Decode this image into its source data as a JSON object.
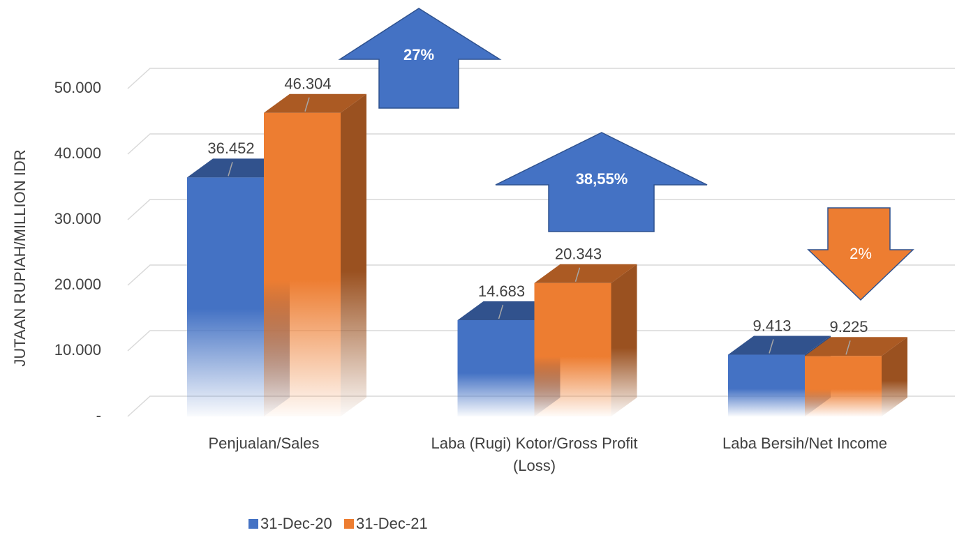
{
  "chart_data": {
    "type": "bar3d",
    "y_axis_label": "JUTAAN RUPIAH/MILLION IDR",
    "categories": [
      "Penjualan/Sales",
      "Laba (Rugi) Kotor/Gross Profit (Loss)",
      "Laba Bersih/Net Income"
    ],
    "series": [
      {
        "name": "31-Dec-20",
        "color": "#4472c4",
        "values": [
          36452,
          14683,
          9413
        ],
        "value_labels": [
          "36.452",
          "14.683",
          "9.413"
        ]
      },
      {
        "name": "31-Dec-21",
        "color": "#ed7d31",
        "values": [
          46304,
          20343,
          9225
        ],
        "value_labels": [
          "46.304",
          "20.343",
          "9.225"
        ]
      }
    ],
    "ylim": [
      0,
      50000
    ],
    "yticks": [
      {
        "value": 0,
        "label": "-"
      },
      {
        "value": 10000,
        "label": "10.000"
      },
      {
        "value": 20000,
        "label": "20.000"
      },
      {
        "value": 30000,
        "label": "30.000"
      },
      {
        "value": 40000,
        "label": "40.000"
      },
      {
        "value": 50000,
        "label": "50.000"
      }
    ],
    "grid": true,
    "legend": "bottom",
    "annotations": [
      "27%",
      "38,55%",
      "2%"
    ]
  }
}
